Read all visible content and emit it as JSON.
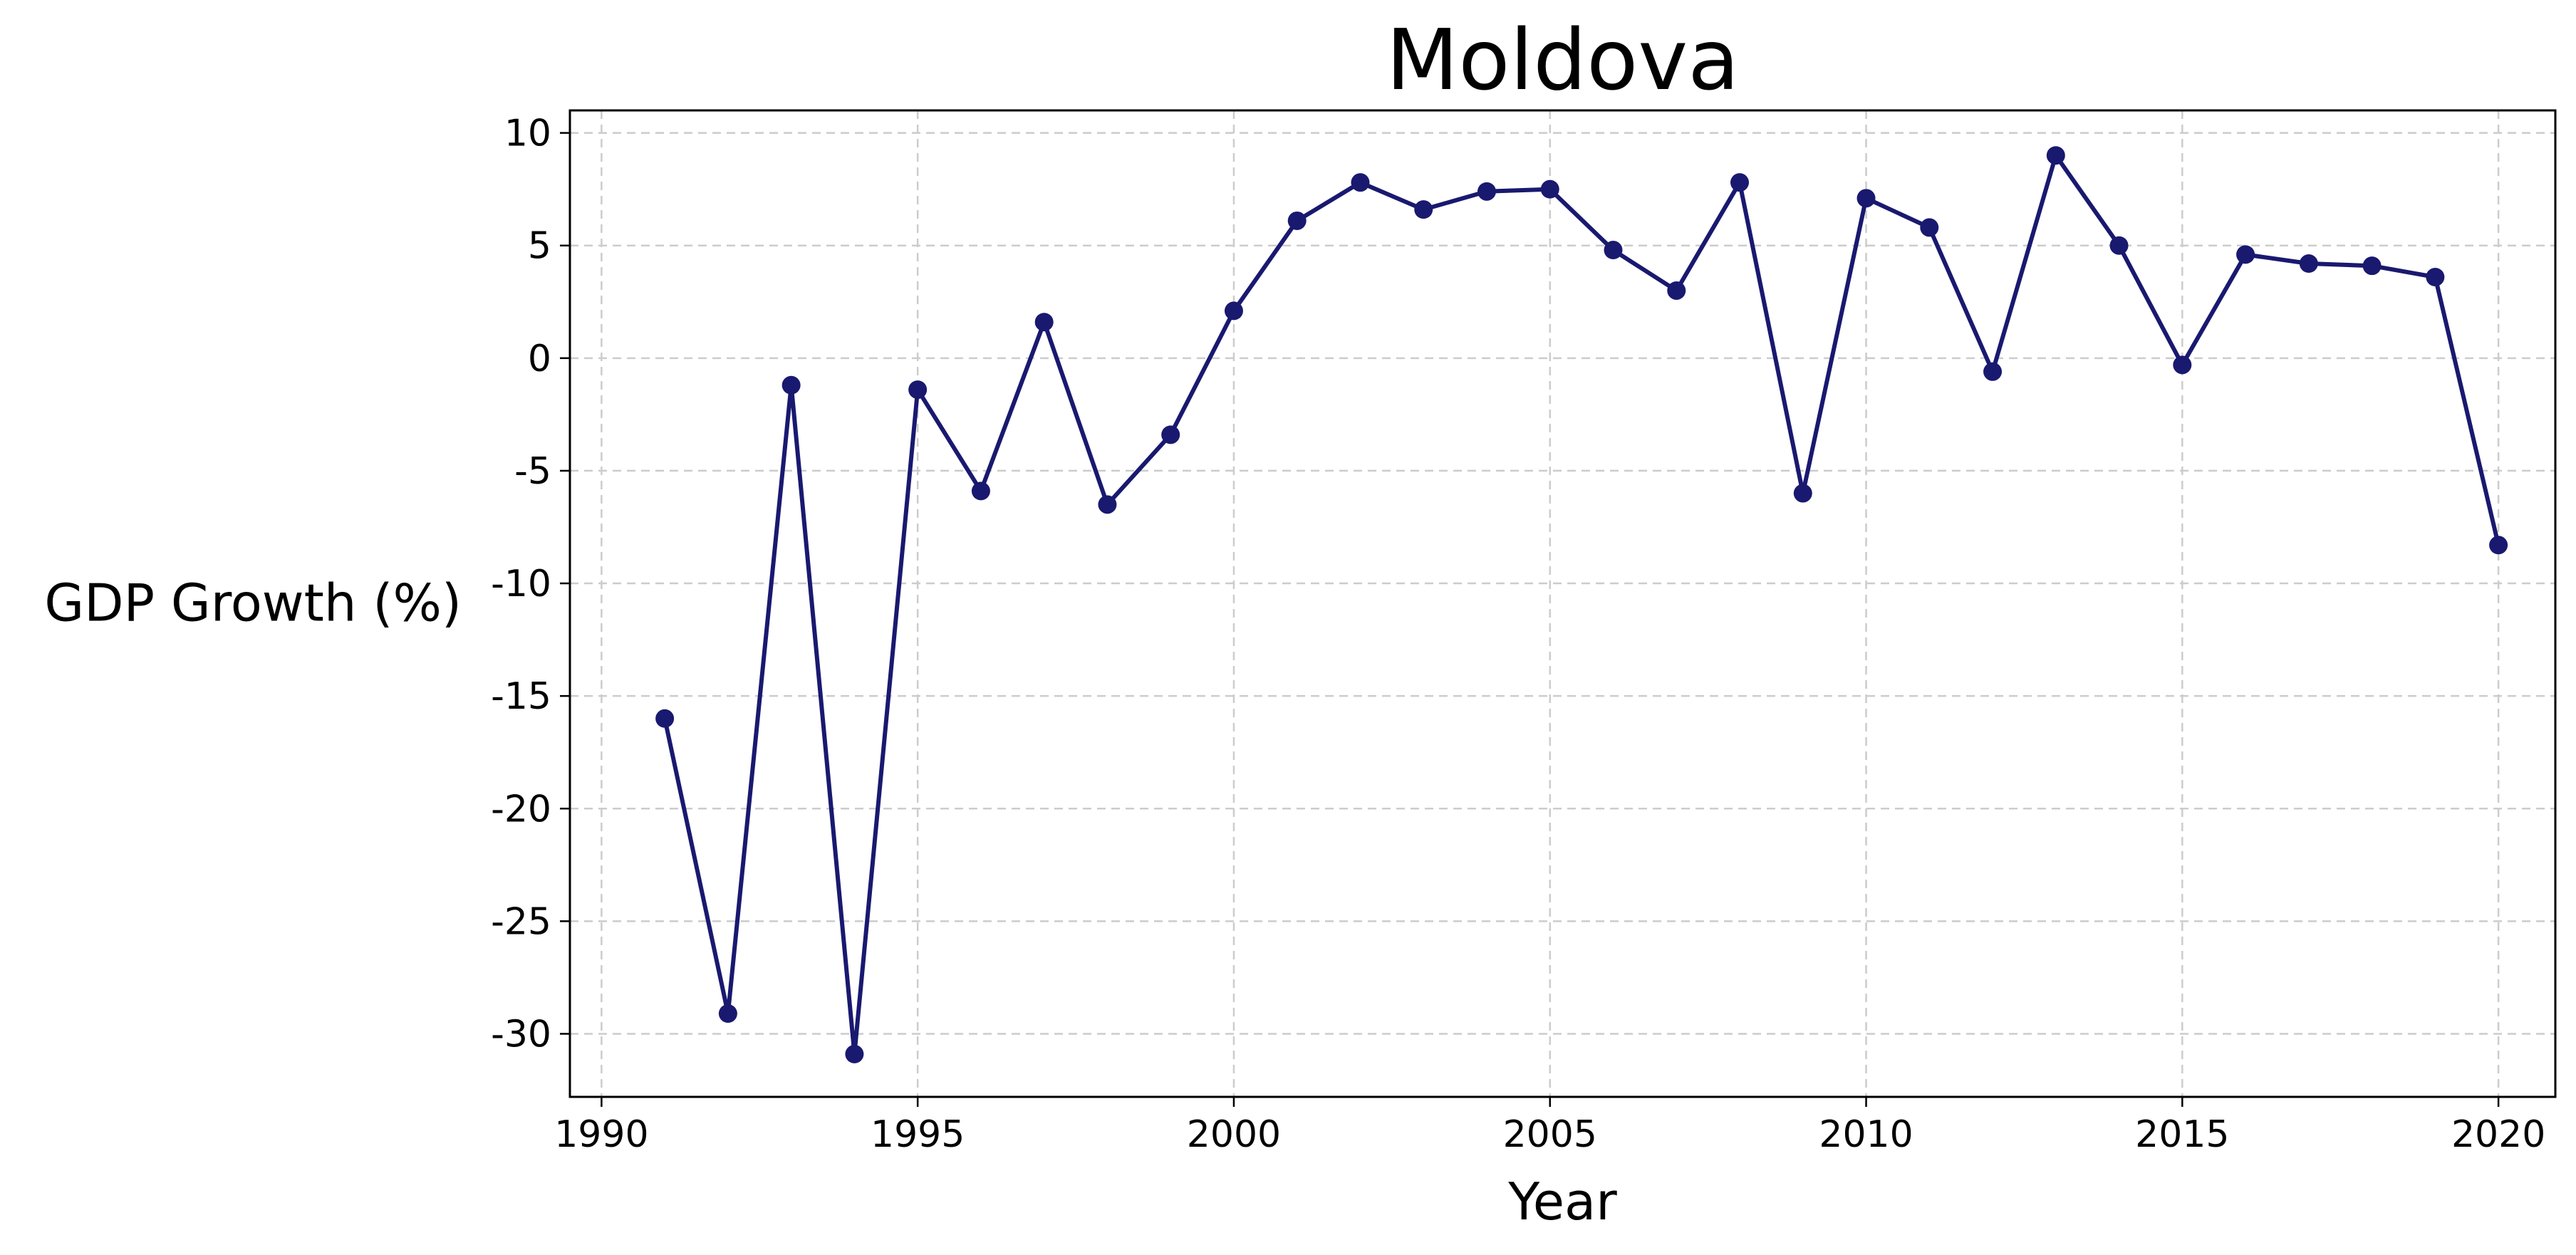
{
  "chart_data": {
    "type": "line",
    "title": "Moldova",
    "xlabel": "Year",
    "ylabel": "GDP Growth (%)",
    "xlim": [
      1989.5,
      2020.9
    ],
    "ylim": [
      -32.8,
      11
    ],
    "xticks": [
      1990,
      1995,
      2000,
      2005,
      2010,
      2015,
      2020
    ],
    "xtick_labels": [
      "1990",
      "1995",
      "2000",
      "2005",
      "2010",
      "2015",
      "2020"
    ],
    "yticks": [
      10,
      5,
      0,
      -5,
      -10,
      -15,
      -20,
      -25,
      -30
    ],
    "ytick_labels": [
      "10",
      "5",
      "0",
      "-5",
      "-10",
      "-15",
      "-20",
      "-25",
      "-30"
    ],
    "grid": true,
    "series": [
      {
        "name": "GDP Growth (%)",
        "color": "#191970",
        "marker": "circle",
        "x": [
          1991,
          1992,
          1993,
          1994,
          1995,
          1996,
          1997,
          1998,
          1999,
          2000,
          2001,
          2002,
          2003,
          2004,
          2005,
          2006,
          2007,
          2008,
          2009,
          2010,
          2011,
          2012,
          2013,
          2014,
          2015,
          2016,
          2017,
          2018,
          2019,
          2020
        ],
        "values": [
          -16.0,
          -29.1,
          -1.2,
          -30.9,
          -1.4,
          -5.9,
          1.6,
          -6.5,
          -3.4,
          2.1,
          6.1,
          7.8,
          6.6,
          7.4,
          7.5,
          4.8,
          3.0,
          7.8,
          -6.0,
          7.1,
          5.8,
          -0.6,
          9.0,
          5.0,
          -0.3,
          4.6,
          4.2,
          4.1,
          3.6,
          -8.3
        ]
      }
    ]
  }
}
